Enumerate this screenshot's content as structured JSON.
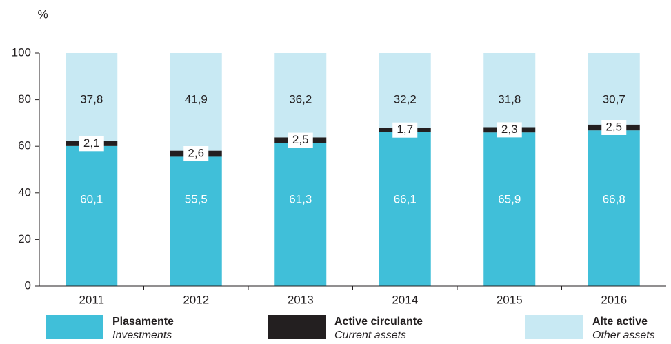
{
  "chart_data": {
    "type": "stacked_bar",
    "y_label": "%",
    "categories": [
      "2011",
      "2012",
      "2013",
      "2014",
      "2015",
      "2016"
    ],
    "series": [
      {
        "name": "Plasamente",
        "subname": "Investments",
        "color": "#40bfd9",
        "values": [
          60.1,
          55.5,
          61.3,
          66.1,
          65.9,
          66.8
        ],
        "value_labels": [
          "60,1",
          "55,5",
          "61,3",
          "66,1",
          "65,9",
          "66,8"
        ]
      },
      {
        "name": "Active circulante",
        "subname": "Current assets",
        "color": "#231f20",
        "values": [
          2.1,
          2.6,
          2.5,
          1.7,
          2.3,
          2.5
        ],
        "value_labels": [
          "2,1",
          "2,6",
          "2,5",
          "1,7",
          "2,3",
          "2,5"
        ]
      },
      {
        "name": "Alte active",
        "subname": "Other assets",
        "color": "#c8e9f3",
        "values": [
          37.8,
          41.9,
          36.2,
          32.2,
          31.8,
          30.7
        ],
        "value_labels": [
          "37,8",
          "41,9",
          "36,2",
          "32,2",
          "31,8",
          "30,7"
        ]
      }
    ],
    "ylim": [
      0,
      100
    ],
    "yticks": [
      0,
      20,
      40,
      60,
      80,
      100
    ]
  }
}
